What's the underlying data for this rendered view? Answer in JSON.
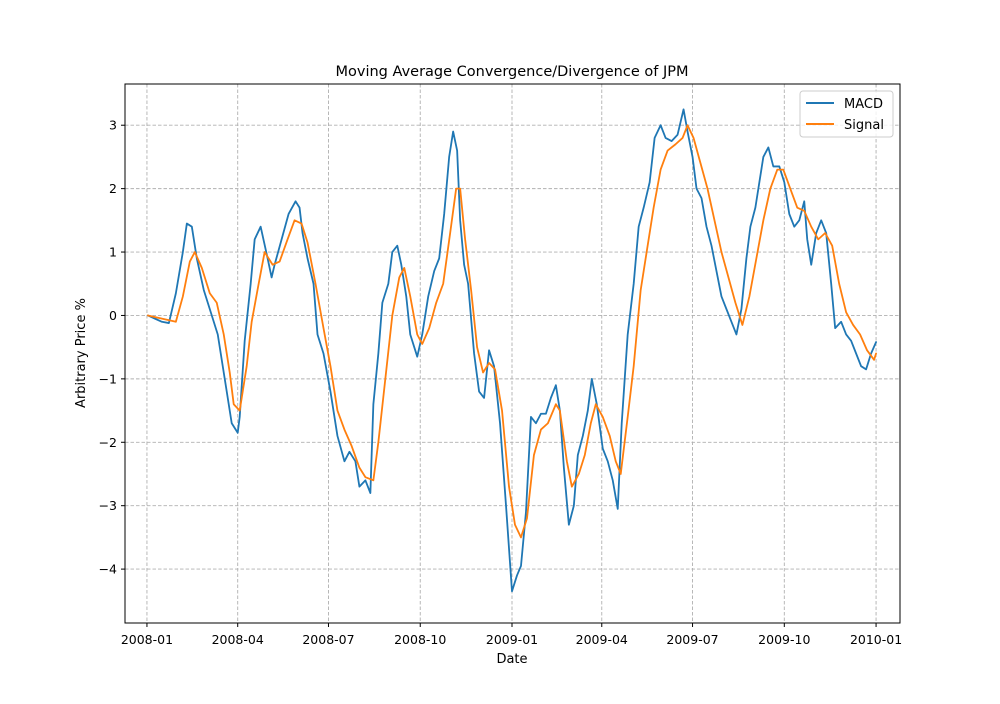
{
  "chart_data": {
    "type": "line",
    "title": "Moving Average Convergence/Divergence of JPM",
    "xlabel": "Date",
    "ylabel": "Arbitrary Price %",
    "x_ticks": [
      "2008-01",
      "2008-04",
      "2008-07",
      "2008-10",
      "2009-01",
      "2009-04",
      "2009-07",
      "2009-10",
      "2010-01"
    ],
    "y_ticks": [
      3,
      2,
      1,
      0,
      -1,
      -2,
      -3,
      -4
    ],
    "y_tick_labels": [
      "3",
      "2",
      "1",
      "0",
      "−1",
      "−2",
      "−3",
      "−4"
    ],
    "xlim": [
      "2007-12-10",
      "2010-01-25"
    ],
    "ylim": [
      -4.85,
      3.65
    ],
    "grid": true,
    "legend": "top-right",
    "series": [
      {
        "name": "MACD",
        "color": "#1f77b4",
        "points": [
          [
            "2008-01-02",
            0.0
          ],
          [
            "2008-01-09",
            -0.05
          ],
          [
            "2008-01-16",
            -0.1
          ],
          [
            "2008-01-23",
            -0.12
          ],
          [
            "2008-01-30",
            0.35
          ],
          [
            "2008-02-06",
            1.0
          ],
          [
            "2008-02-10",
            1.45
          ],
          [
            "2008-02-15",
            1.4
          ],
          [
            "2008-02-20",
            0.9
          ],
          [
            "2008-02-27",
            0.4
          ],
          [
            "2008-03-05",
            0.05
          ],
          [
            "2008-03-12",
            -0.3
          ],
          [
            "2008-03-19",
            -1.0
          ],
          [
            "2008-03-26",
            -1.7
          ],
          [
            "2008-04-01",
            -1.85
          ],
          [
            "2008-04-03",
            -1.6
          ],
          [
            "2008-04-08",
            -0.4
          ],
          [
            "2008-04-14",
            0.5
          ],
          [
            "2008-04-18",
            1.2
          ],
          [
            "2008-04-24",
            1.4
          ],
          [
            "2008-05-01",
            0.9
          ],
          [
            "2008-05-05",
            0.6
          ],
          [
            "2008-05-08",
            0.8
          ],
          [
            "2008-05-15",
            1.2
          ],
          [
            "2008-05-22",
            1.6
          ],
          [
            "2008-05-29",
            1.8
          ],
          [
            "2008-06-02",
            1.7
          ],
          [
            "2008-06-05",
            1.3
          ],
          [
            "2008-06-10",
            0.9
          ],
          [
            "2008-06-16",
            0.5
          ],
          [
            "2008-06-20",
            -0.3
          ],
          [
            "2008-06-26",
            -0.6
          ],
          [
            "2008-07-03",
            -1.2
          ],
          [
            "2008-07-10",
            -1.9
          ],
          [
            "2008-07-17",
            -2.3
          ],
          [
            "2008-07-22",
            -2.15
          ],
          [
            "2008-07-28",
            -2.3
          ],
          [
            "2008-08-01",
            -2.7
          ],
          [
            "2008-08-07",
            -2.6
          ],
          [
            "2008-08-12",
            -2.8
          ],
          [
            "2008-08-15",
            -1.4
          ],
          [
            "2008-08-20",
            -0.6
          ],
          [
            "2008-08-24",
            0.2
          ],
          [
            "2008-08-30",
            0.5
          ],
          [
            "2008-09-03",
            1.0
          ],
          [
            "2008-09-08",
            1.1
          ],
          [
            "2008-09-12",
            0.8
          ],
          [
            "2008-09-17",
            0.3
          ],
          [
            "2008-09-21",
            -0.3
          ],
          [
            "2008-09-28",
            -0.65
          ],
          [
            "2008-10-03",
            -0.3
          ],
          [
            "2008-10-09",
            0.3
          ],
          [
            "2008-10-15",
            0.7
          ],
          [
            "2008-10-20",
            0.9
          ],
          [
            "2008-10-25",
            1.6
          ],
          [
            "2008-10-30",
            2.5
          ],
          [
            "2008-11-03",
            2.9
          ],
          [
            "2008-11-07",
            2.6
          ],
          [
            "2008-11-10",
            1.5
          ],
          [
            "2008-11-14",
            0.8
          ],
          [
            "2008-11-18",
            0.5
          ],
          [
            "2008-11-24",
            -0.6
          ],
          [
            "2008-11-29",
            -1.2
          ],
          [
            "2008-12-04",
            -1.3
          ],
          [
            "2008-12-09",
            -0.55
          ],
          [
            "2008-12-14",
            -0.8
          ],
          [
            "2008-12-20",
            -1.7
          ],
          [
            "2008-12-26",
            -3.0
          ],
          [
            "2009-01-01",
            -4.35
          ],
          [
            "2009-01-06",
            -4.1
          ],
          [
            "2009-01-10",
            -3.95
          ],
          [
            "2009-01-15",
            -3.1
          ],
          [
            "2009-01-20",
            -1.6
          ],
          [
            "2009-01-25",
            -1.7
          ],
          [
            "2009-01-30",
            -1.55
          ],
          [
            "2009-02-04",
            -1.55
          ],
          [
            "2009-02-09",
            -1.3
          ],
          [
            "2009-02-14",
            -1.1
          ],
          [
            "2009-02-18",
            -1.5
          ],
          [
            "2009-02-22",
            -2.4
          ],
          [
            "2009-02-27",
            -3.3
          ],
          [
            "2009-03-04",
            -3.0
          ],
          [
            "2009-03-08",
            -2.2
          ],
          [
            "2009-03-13",
            -1.9
          ],
          [
            "2009-03-18",
            -1.5
          ],
          [
            "2009-03-22",
            -1.0
          ],
          [
            "2009-03-27",
            -1.4
          ],
          [
            "2009-04-02",
            -2.1
          ],
          [
            "2009-04-07",
            -2.3
          ],
          [
            "2009-04-12",
            -2.6
          ],
          [
            "2009-04-17",
            -3.05
          ],
          [
            "2009-04-21",
            -1.7
          ],
          [
            "2009-04-27",
            -0.3
          ],
          [
            "2009-05-03",
            0.5
          ],
          [
            "2009-05-08",
            1.4
          ],
          [
            "2009-05-13",
            1.7
          ],
          [
            "2009-05-19",
            2.1
          ],
          [
            "2009-05-24",
            2.8
          ],
          [
            "2009-05-30",
            3.0
          ],
          [
            "2009-06-04",
            2.8
          ],
          [
            "2009-06-10",
            2.75
          ],
          [
            "2009-06-16",
            2.85
          ],
          [
            "2009-06-22",
            3.25
          ],
          [
            "2009-06-26",
            2.9
          ],
          [
            "2009-07-01",
            2.5
          ],
          [
            "2009-07-05",
            2.0
          ],
          [
            "2009-07-10",
            1.85
          ],
          [
            "2009-07-15",
            1.4
          ],
          [
            "2009-07-20",
            1.1
          ],
          [
            "2009-07-25",
            0.7
          ],
          [
            "2009-07-30",
            0.3
          ],
          [
            "2009-08-04",
            0.1
          ],
          [
            "2009-08-09",
            -0.1
          ],
          [
            "2009-08-14",
            -0.3
          ],
          [
            "2009-08-19",
            0.1
          ],
          [
            "2009-08-24",
            0.9
          ],
          [
            "2009-08-28",
            1.4
          ],
          [
            "2009-09-02",
            1.7
          ],
          [
            "2009-09-06",
            2.1
          ],
          [
            "2009-09-10",
            2.5
          ],
          [
            "2009-09-15",
            2.65
          ],
          [
            "2009-09-20",
            2.35
          ],
          [
            "2009-09-26",
            2.35
          ],
          [
            "2009-10-01",
            2.1
          ],
          [
            "2009-10-06",
            1.6
          ],
          [
            "2009-10-11",
            1.4
          ],
          [
            "2009-10-16",
            1.5
          ],
          [
            "2009-10-21",
            1.8
          ],
          [
            "2009-10-24",
            1.2
          ],
          [
            "2009-10-28",
            0.8
          ],
          [
            "2009-11-02",
            1.3
          ],
          [
            "2009-11-07",
            1.5
          ],
          [
            "2009-11-12",
            1.3
          ],
          [
            "2009-11-17",
            0.5
          ],
          [
            "2009-11-21",
            -0.2
          ],
          [
            "2009-11-27",
            -0.1
          ],
          [
            "2009-12-02",
            -0.3
          ],
          [
            "2009-12-07",
            -0.4
          ],
          [
            "2009-12-12",
            -0.6
          ],
          [
            "2009-12-17",
            -0.8
          ],
          [
            "2009-12-22",
            -0.85
          ],
          [
            "2009-12-27",
            -0.6
          ],
          [
            "2010-01-01",
            -0.42
          ]
        ]
      },
      {
        "name": "Signal",
        "color": "#ff7f0e",
        "points": [
          [
            "2008-01-02",
            0.0
          ],
          [
            "2008-01-16",
            -0.05
          ],
          [
            "2008-01-30",
            -0.1
          ],
          [
            "2008-02-06",
            0.3
          ],
          [
            "2008-02-13",
            0.85
          ],
          [
            "2008-02-18",
            1.0
          ],
          [
            "2008-02-25",
            0.75
          ],
          [
            "2008-03-04",
            0.35
          ],
          [
            "2008-03-11",
            0.2
          ],
          [
            "2008-03-18",
            -0.3
          ],
          [
            "2008-03-24",
            -0.9
          ],
          [
            "2008-03-28",
            -1.4
          ],
          [
            "2008-04-03",
            -1.5
          ],
          [
            "2008-04-10",
            -0.8
          ],
          [
            "2008-04-15",
            -0.1
          ],
          [
            "2008-04-22",
            0.5
          ],
          [
            "2008-04-28",
            1.0
          ],
          [
            "2008-05-06",
            0.8
          ],
          [
            "2008-05-13",
            0.85
          ],
          [
            "2008-05-21",
            1.2
          ],
          [
            "2008-05-28",
            1.5
          ],
          [
            "2008-06-04",
            1.45
          ],
          [
            "2008-06-10",
            1.15
          ],
          [
            "2008-06-18",
            0.5
          ],
          [
            "2008-06-26",
            -0.2
          ],
          [
            "2008-07-03",
            -0.8
          ],
          [
            "2008-07-10",
            -1.5
          ],
          [
            "2008-07-17",
            -1.8
          ],
          [
            "2008-07-24",
            -2.05
          ],
          [
            "2008-08-01",
            -2.4
          ],
          [
            "2008-08-07",
            -2.55
          ],
          [
            "2008-08-15",
            -2.6
          ],
          [
            "2008-08-20",
            -2.0
          ],
          [
            "2008-08-27",
            -1.0
          ],
          [
            "2008-09-03",
            0.0
          ],
          [
            "2008-09-10",
            0.6
          ],
          [
            "2008-09-15",
            0.75
          ],
          [
            "2008-09-21",
            0.3
          ],
          [
            "2008-09-28",
            -0.3
          ],
          [
            "2008-10-03",
            -0.45
          ],
          [
            "2008-10-10",
            -0.2
          ],
          [
            "2008-10-17",
            0.2
          ],
          [
            "2008-10-24",
            0.5
          ],
          [
            "2008-10-31",
            1.3
          ],
          [
            "2008-11-06",
            2.0
          ],
          [
            "2008-11-10",
            2.0
          ],
          [
            "2008-11-15",
            1.2
          ],
          [
            "2008-11-21",
            0.4
          ],
          [
            "2008-11-27",
            -0.5
          ],
          [
            "2008-12-03",
            -0.9
          ],
          [
            "2008-12-09",
            -0.75
          ],
          [
            "2008-12-15",
            -0.85
          ],
          [
            "2008-12-22",
            -1.5
          ],
          [
            "2008-12-29",
            -2.7
          ],
          [
            "2009-01-04",
            -3.3
          ],
          [
            "2009-01-10",
            -3.5
          ],
          [
            "2009-01-16",
            -3.2
          ],
          [
            "2009-01-23",
            -2.2
          ],
          [
            "2009-01-30",
            -1.8
          ],
          [
            "2009-02-06",
            -1.7
          ],
          [
            "2009-02-14",
            -1.4
          ],
          [
            "2009-02-18",
            -1.5
          ],
          [
            "2009-02-25",
            -2.3
          ],
          [
            "2009-03-02",
            -2.7
          ],
          [
            "2009-03-09",
            -2.5
          ],
          [
            "2009-03-15",
            -2.2
          ],
          [
            "2009-03-21",
            -1.7
          ],
          [
            "2009-03-26",
            -1.4
          ],
          [
            "2009-04-02",
            -1.6
          ],
          [
            "2009-04-09",
            -1.9
          ],
          [
            "2009-04-15",
            -2.3
          ],
          [
            "2009-04-20",
            -2.5
          ],
          [
            "2009-04-27",
            -1.6
          ],
          [
            "2009-05-03",
            -0.8
          ],
          [
            "2009-05-10",
            0.4
          ],
          [
            "2009-05-16",
            1.0
          ],
          [
            "2009-05-23",
            1.7
          ],
          [
            "2009-05-30",
            2.3
          ],
          [
            "2009-06-06",
            2.6
          ],
          [
            "2009-06-14",
            2.7
          ],
          [
            "2009-06-21",
            2.8
          ],
          [
            "2009-06-26",
            3.0
          ],
          [
            "2009-07-02",
            2.8
          ],
          [
            "2009-07-09",
            2.4
          ],
          [
            "2009-07-16",
            2.0
          ],
          [
            "2009-07-23",
            1.5
          ],
          [
            "2009-07-30",
            1.0
          ],
          [
            "2009-08-06",
            0.6
          ],
          [
            "2009-08-13",
            0.2
          ],
          [
            "2009-08-20",
            -0.15
          ],
          [
            "2009-08-27",
            0.3
          ],
          [
            "2009-09-03",
            0.9
          ],
          [
            "2009-09-10",
            1.5
          ],
          [
            "2009-09-17",
            2.0
          ],
          [
            "2009-09-24",
            2.3
          ],
          [
            "2009-09-30",
            2.3
          ],
          [
            "2009-10-07",
            2.0
          ],
          [
            "2009-10-14",
            1.7
          ],
          [
            "2009-10-21",
            1.65
          ],
          [
            "2009-10-28",
            1.4
          ],
          [
            "2009-11-04",
            1.2
          ],
          [
            "2009-11-11",
            1.3
          ],
          [
            "2009-11-18",
            1.1
          ],
          [
            "2009-11-25",
            0.5
          ],
          [
            "2009-12-02",
            0.05
          ],
          [
            "2009-12-09",
            -0.15
          ],
          [
            "2009-12-16",
            -0.3
          ],
          [
            "2009-12-23",
            -0.55
          ],
          [
            "2009-12-30",
            -0.7
          ],
          [
            "2010-01-01",
            -0.6
          ]
        ]
      }
    ]
  }
}
